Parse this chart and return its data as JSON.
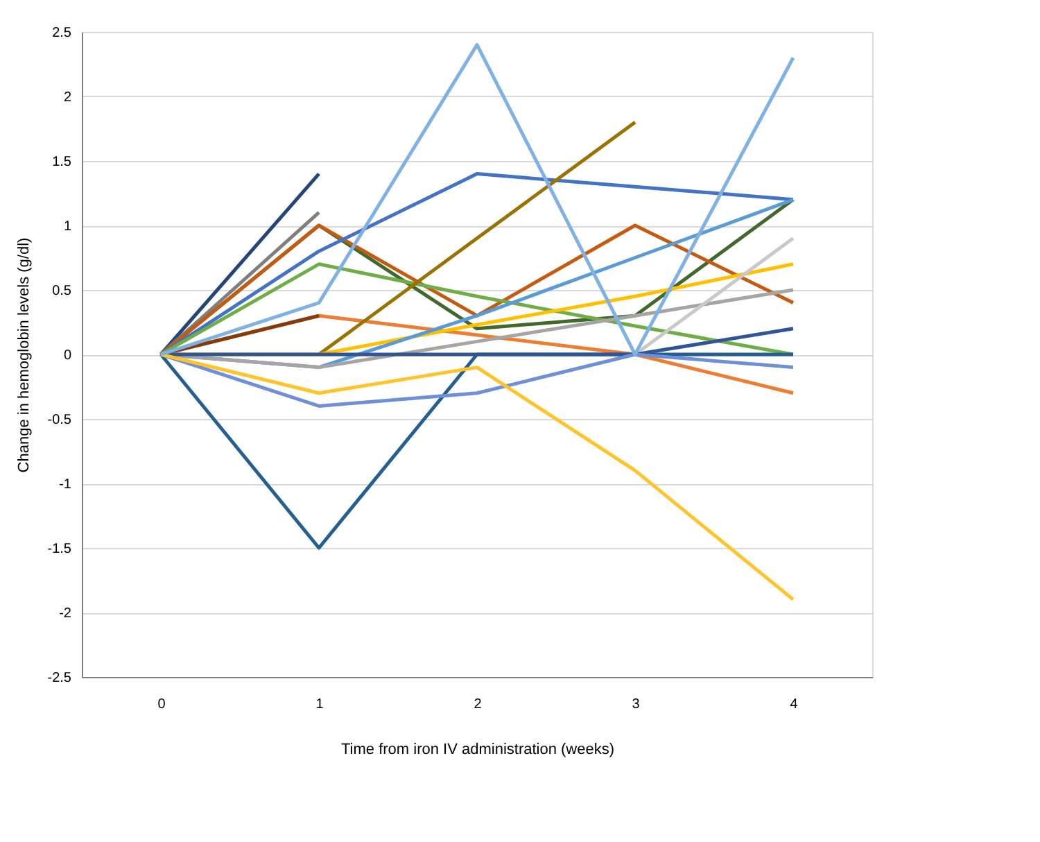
{
  "chart_data": {
    "type": "line",
    "xlabel": "Time from iron IV administration (weeks)",
    "ylabel": "Change in hemoglobin levels (g/dl)",
    "categories": [
      "0",
      "1",
      "2",
      "3",
      "4"
    ],
    "ylim": [
      -2.5,
      2.5
    ],
    "yticks": [
      -2.5,
      -2,
      -1.5,
      -1,
      -0.5,
      0,
      0.5,
      1,
      1.5,
      2,
      2.5
    ],
    "grid": "y",
    "legend": false,
    "marker": "none",
    "line_style": "solid",
    "series": [
      {
        "color": "#264478",
        "values": [
          0,
          1.4,
          null,
          null,
          null
        ]
      },
      {
        "color": "#7f7f7f",
        "values": [
          0,
          1.1,
          null,
          null,
          null
        ]
      },
      {
        "color": "#43682b",
        "values": [
          0,
          1.0,
          0.2,
          0.3,
          1.2
        ]
      },
      {
        "color": "#c55a11",
        "values": [
          0,
          1.0,
          0.3,
          1.0,
          0.4
        ]
      },
      {
        "color": "#4472c4",
        "values": [
          0,
          0.8,
          1.4,
          1.3,
          1.2
        ]
      },
      {
        "color": "#70ad47",
        "values": [
          0,
          0.7,
          0.45,
          0.22,
          0
        ]
      },
      {
        "color": "#ed7d31",
        "values": [
          0,
          0.3,
          0.15,
          0,
          -0.3
        ]
      },
      {
        "color": "#843c0c",
        "values": [
          0,
          0.3,
          null,
          null,
          null
        ]
      },
      {
        "color": "#997300",
        "values": [
          null,
          0,
          0.9,
          1.8,
          null
        ]
      },
      {
        "color": "#ffc000",
        "values": [
          0,
          0,
          0.23,
          0.45,
          0.7
        ]
      },
      {
        "color": "#5b9bd5",
        "values": [
          0,
          -0.1,
          0.3,
          0.75,
          1.2
        ]
      },
      {
        "color": "#a5a5a5",
        "values": [
          0,
          -0.1,
          0.1,
          0.3,
          0.5
        ]
      },
      {
        "color": "#c9c9c9",
        "values": [
          null,
          null,
          null,
          0,
          0.9
        ]
      },
      {
        "color": "#255e91",
        "values": [
          0,
          -1.5,
          0,
          0,
          0
        ]
      },
      {
        "color": "#2f5597",
        "values": [
          0,
          0,
          0,
          0,
          0.2
        ]
      },
      {
        "color": "#6f8fd6",
        "values": [
          0,
          -0.4,
          -0.3,
          0,
          -0.1
        ]
      },
      {
        "color": "#ffc42a",
        "values": [
          0,
          -0.3,
          -0.1,
          -0.9,
          -1.9
        ]
      },
      {
        "color": "#7fb2e3",
        "values": [
          0,
          0.4,
          2.4,
          0,
          2.3
        ]
      }
    ]
  }
}
